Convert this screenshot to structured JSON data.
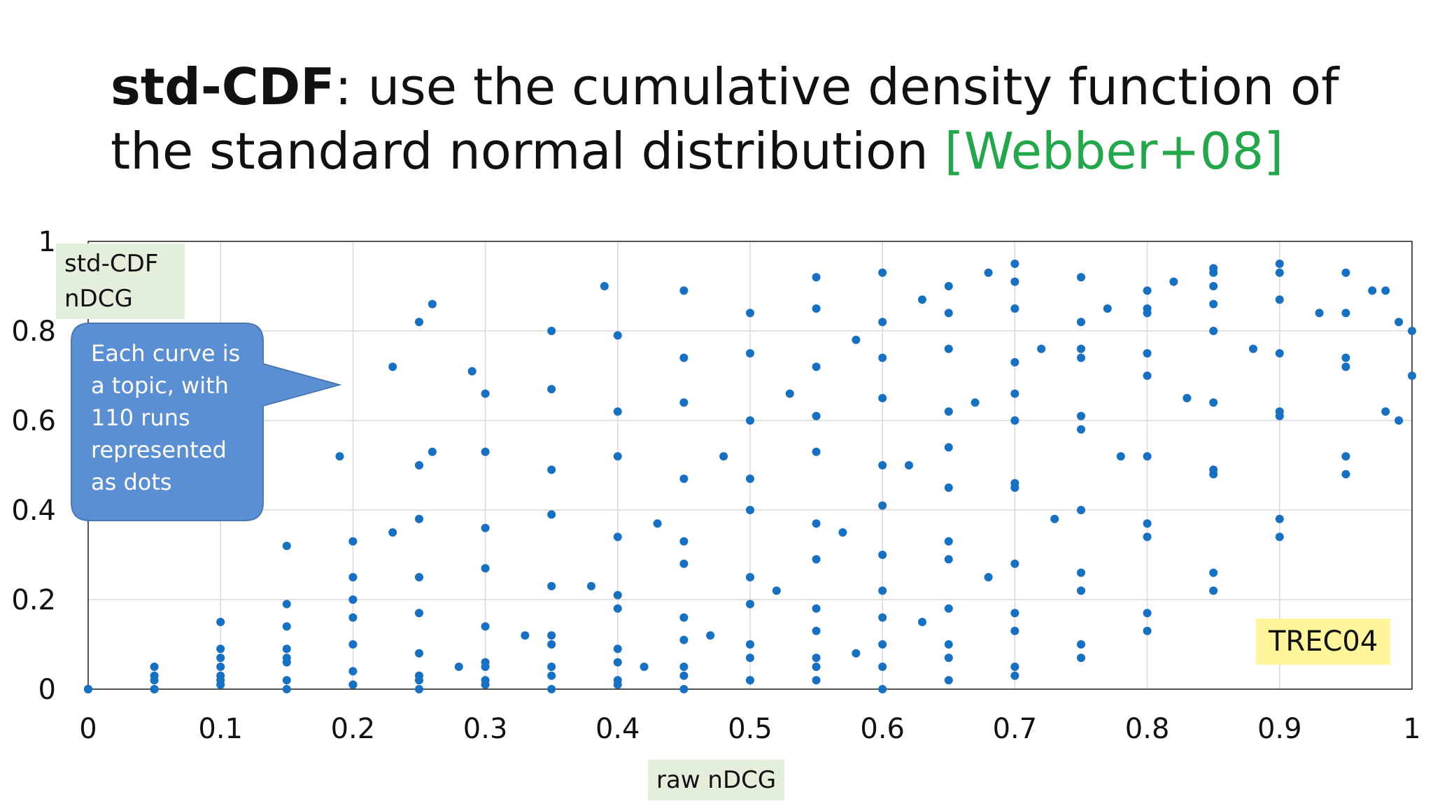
{
  "title": {
    "term": "std-CDF",
    "rest": ": use the cumulative density function of the standard normal distribution ",
    "cite": "[Webber+08]"
  },
  "badge": "TREC04",
  "callout": "Each curve is a topic, with 110 runs represented as dots",
  "colors": {
    "dots": "#1670c4",
    "callout": "#5b8fd4",
    "cite": "#22a84a",
    "label_bg": "#e3eedb",
    "badge_bg": "#fff59a"
  },
  "chart_data": {
    "type": "scatter",
    "xlabel": "raw nDCG",
    "ylabel": "std-CDF nDCG",
    "xlim": [
      0,
      1
    ],
    "ylim": [
      0,
      1
    ],
    "x_ticks": [
      "0",
      "0.1",
      "0.2",
      "0.3",
      "0.4",
      "0.5",
      "0.6",
      "0.7",
      "0.8",
      "0.9",
      "1"
    ],
    "y_ticks": [
      "0",
      "0.2",
      "0.4",
      "0.6",
      "0.8",
      "1"
    ],
    "grid": true,
    "series": [
      {
        "points": [
          [
            0.0,
            0.0
          ],
          [
            0.05,
            0.0
          ],
          [
            0.1,
            0.02
          ],
          [
            0.15,
            0.07
          ],
          [
            0.2,
            0.2
          ],
          [
            0.23,
            0.35
          ],
          [
            0.26,
            0.53
          ],
          [
            0.29,
            0.71
          ]
        ]
      },
      {
        "points": [
          [
            0.0,
            0.0
          ],
          [
            0.05,
            0.05
          ],
          [
            0.1,
            0.15
          ],
          [
            0.15,
            0.32
          ],
          [
            0.19,
            0.52
          ],
          [
            0.23,
            0.72
          ],
          [
            0.25,
            0.82
          ],
          [
            0.26,
            0.86
          ]
        ]
      },
      {
        "points": [
          [
            0.0,
            0.0
          ],
          [
            0.05,
            0.03
          ],
          [
            0.1,
            0.09
          ],
          [
            0.15,
            0.19
          ],
          [
            0.2,
            0.33
          ],
          [
            0.25,
            0.5
          ],
          [
            0.3,
            0.66
          ],
          [
            0.35,
            0.8
          ],
          [
            0.39,
            0.9
          ]
        ]
      },
      {
        "points": [
          [
            0.0,
            0.0
          ],
          [
            0.05,
            0.02
          ],
          [
            0.1,
            0.07
          ],
          [
            0.15,
            0.14
          ],
          [
            0.2,
            0.25
          ],
          [
            0.25,
            0.38
          ],
          [
            0.3,
            0.53
          ],
          [
            0.35,
            0.67
          ],
          [
            0.4,
            0.79
          ],
          [
            0.45,
            0.89
          ]
        ]
      },
      {
        "points": [
          [
            0.0,
            0.0
          ],
          [
            0.1,
            0.05
          ],
          [
            0.15,
            0.09
          ],
          [
            0.2,
            0.16
          ],
          [
            0.25,
            0.25
          ],
          [
            0.3,
            0.36
          ],
          [
            0.35,
            0.49
          ],
          [
            0.4,
            0.62
          ],
          [
            0.45,
            0.74
          ],
          [
            0.5,
            0.84
          ],
          [
            0.55,
            0.92
          ]
        ]
      },
      {
        "points": [
          [
            0.05,
            0.0
          ],
          [
            0.1,
            0.03
          ],
          [
            0.15,
            0.06
          ],
          [
            0.2,
            0.1
          ],
          [
            0.25,
            0.17
          ],
          [
            0.3,
            0.27
          ],
          [
            0.35,
            0.39
          ],
          [
            0.4,
            0.52
          ],
          [
            0.45,
            0.64
          ],
          [
            0.5,
            0.75
          ],
          [
            0.55,
            0.85
          ],
          [
            0.6,
            0.93
          ]
        ]
      },
      {
        "points": [
          [
            0.1,
            0.01
          ],
          [
            0.15,
            0.02
          ],
          [
            0.2,
            0.04
          ],
          [
            0.25,
            0.08
          ],
          [
            0.3,
            0.14
          ],
          [
            0.35,
            0.23
          ],
          [
            0.4,
            0.34
          ],
          [
            0.45,
            0.47
          ],
          [
            0.5,
            0.6
          ],
          [
            0.55,
            0.72
          ],
          [
            0.6,
            0.82
          ],
          [
            0.65,
            0.9
          ],
          [
            0.7,
            0.95
          ]
        ]
      },
      {
        "points": [
          [
            0.2,
            0.01
          ],
          [
            0.25,
            0.02
          ],
          [
            0.3,
            0.05
          ],
          [
            0.35,
            0.1
          ],
          [
            0.4,
            0.18
          ],
          [
            0.45,
            0.28
          ],
          [
            0.5,
            0.4
          ],
          [
            0.55,
            0.53
          ],
          [
            0.6,
            0.65
          ],
          [
            0.65,
            0.76
          ],
          [
            0.7,
            0.85
          ],
          [
            0.75,
            0.92
          ]
        ]
      },
      {
        "points": [
          [
            0.25,
            0.0
          ],
          [
            0.3,
            0.02
          ],
          [
            0.35,
            0.05
          ],
          [
            0.4,
            0.09
          ],
          [
            0.45,
            0.16
          ],
          [
            0.5,
            0.25
          ],
          [
            0.55,
            0.37
          ],
          [
            0.6,
            0.5
          ],
          [
            0.65,
            0.62
          ],
          [
            0.7,
            0.73
          ],
          [
            0.75,
            0.82
          ],
          [
            0.8,
            0.89
          ],
          [
            0.85,
            0.94
          ]
        ]
      },
      {
        "points": [
          [
            0.3,
            0.01
          ],
          [
            0.35,
            0.03
          ],
          [
            0.4,
            0.06
          ],
          [
            0.45,
            0.11
          ],
          [
            0.5,
            0.19
          ],
          [
            0.55,
            0.29
          ],
          [
            0.6,
            0.41
          ],
          [
            0.65,
            0.54
          ],
          [
            0.7,
            0.66
          ],
          [
            0.75,
            0.76
          ],
          [
            0.8,
            0.84
          ],
          [
            0.85,
            0.9
          ],
          [
            0.9,
            0.95
          ]
        ]
      },
      {
        "points": [
          [
            0.4,
            0.01
          ],
          [
            0.45,
            0.03
          ],
          [
            0.5,
            0.07
          ],
          [
            0.55,
            0.13
          ],
          [
            0.6,
            0.22
          ],
          [
            0.65,
            0.33
          ],
          [
            0.7,
            0.46
          ],
          [
            0.75,
            0.58
          ],
          [
            0.8,
            0.7
          ],
          [
            0.85,
            0.8
          ],
          [
            0.9,
            0.87
          ],
          [
            0.95,
            0.93
          ]
        ]
      },
      {
        "points": [
          [
            0.45,
            0.0
          ],
          [
            0.5,
            0.02
          ],
          [
            0.55,
            0.05
          ],
          [
            0.6,
            0.1
          ],
          [
            0.65,
            0.18
          ],
          [
            0.7,
            0.28
          ],
          [
            0.75,
            0.4
          ],
          [
            0.8,
            0.52
          ],
          [
            0.85,
            0.64
          ],
          [
            0.9,
            0.75
          ],
          [
            0.95,
            0.84
          ],
          [
            0.98,
            0.89
          ]
        ]
      },
      {
        "points": [
          [
            0.55,
            0.02
          ],
          [
            0.6,
            0.05
          ],
          [
            0.65,
            0.1
          ],
          [
            0.7,
            0.17
          ],
          [
            0.75,
            0.26
          ],
          [
            0.8,
            0.37
          ],
          [
            0.85,
            0.49
          ],
          [
            0.9,
            0.61
          ],
          [
            0.95,
            0.72
          ],
          [
            1.0,
            0.8
          ]
        ]
      },
      {
        "points": [
          [
            0.6,
            0.0
          ],
          [
            0.65,
            0.02
          ],
          [
            0.7,
            0.05
          ],
          [
            0.75,
            0.1
          ],
          [
            0.8,
            0.17
          ],
          [
            0.85,
            0.26
          ],
          [
            0.9,
            0.38
          ],
          [
            0.95,
            0.52
          ],
          [
            0.98,
            0.62
          ],
          [
            1.0,
            0.7
          ]
        ]
      },
      {
        "points": [
          [
            0.7,
            0.03
          ],
          [
            0.75,
            0.07
          ],
          [
            0.8,
            0.13
          ],
          [
            0.85,
            0.22
          ],
          [
            0.9,
            0.34
          ],
          [
            0.95,
            0.48
          ],
          [
            0.99,
            0.6
          ]
        ]
      },
      {
        "points": [
          [
            0.35,
            0.0
          ],
          [
            0.4,
            0.02
          ],
          [
            0.45,
            0.05
          ],
          [
            0.5,
            0.1
          ],
          [
            0.55,
            0.18
          ],
          [
            0.6,
            0.3
          ],
          [
            0.65,
            0.45
          ],
          [
            0.7,
            0.6
          ],
          [
            0.75,
            0.74
          ],
          [
            0.8,
            0.85
          ],
          [
            0.85,
            0.93
          ]
        ]
      },
      {
        "points": [
          [
            0.5,
            0.02
          ],
          [
            0.55,
            0.07
          ],
          [
            0.6,
            0.16
          ],
          [
            0.65,
            0.29
          ],
          [
            0.7,
            0.45
          ],
          [
            0.75,
            0.61
          ],
          [
            0.8,
            0.75
          ],
          [
            0.85,
            0.86
          ],
          [
            0.9,
            0.93
          ]
        ]
      },
      {
        "points": [
          [
            0.65,
            0.07
          ],
          [
            0.7,
            0.13
          ],
          [
            0.75,
            0.22
          ],
          [
            0.8,
            0.34
          ],
          [
            0.85,
            0.48
          ],
          [
            0.9,
            0.62
          ],
          [
            0.95,
            0.74
          ],
          [
            0.99,
            0.82
          ]
        ]
      },
      {
        "points": [
          [
            0.28,
            0.05
          ],
          [
            0.33,
            0.12
          ],
          [
            0.38,
            0.23
          ],
          [
            0.43,
            0.37
          ],
          [
            0.48,
            0.52
          ],
          [
            0.53,
            0.66
          ],
          [
            0.58,
            0.78
          ],
          [
            0.63,
            0.87
          ],
          [
            0.68,
            0.93
          ]
        ]
      },
      {
        "points": [
          [
            0.15,
            0.0
          ],
          [
            0.2,
            0.01
          ],
          [
            0.25,
            0.03
          ],
          [
            0.3,
            0.06
          ],
          [
            0.35,
            0.12
          ],
          [
            0.4,
            0.21
          ],
          [
            0.45,
            0.33
          ],
          [
            0.5,
            0.47
          ],
          [
            0.55,
            0.61
          ],
          [
            0.6,
            0.74
          ],
          [
            0.65,
            0.84
          ],
          [
            0.7,
            0.91
          ]
        ]
      },
      {
        "points": [
          [
            0.42,
            0.05
          ],
          [
            0.47,
            0.12
          ],
          [
            0.52,
            0.22
          ],
          [
            0.57,
            0.35
          ],
          [
            0.62,
            0.5
          ],
          [
            0.67,
            0.64
          ],
          [
            0.72,
            0.76
          ],
          [
            0.77,
            0.85
          ],
          [
            0.82,
            0.91
          ]
        ]
      },
      {
        "points": [
          [
            0.58,
            0.08
          ],
          [
            0.63,
            0.15
          ],
          [
            0.68,
            0.25
          ],
          [
            0.73,
            0.38
          ],
          [
            0.78,
            0.52
          ],
          [
            0.83,
            0.65
          ],
          [
            0.88,
            0.76
          ],
          [
            0.93,
            0.84
          ],
          [
            0.97,
            0.89
          ]
        ]
      }
    ]
  }
}
